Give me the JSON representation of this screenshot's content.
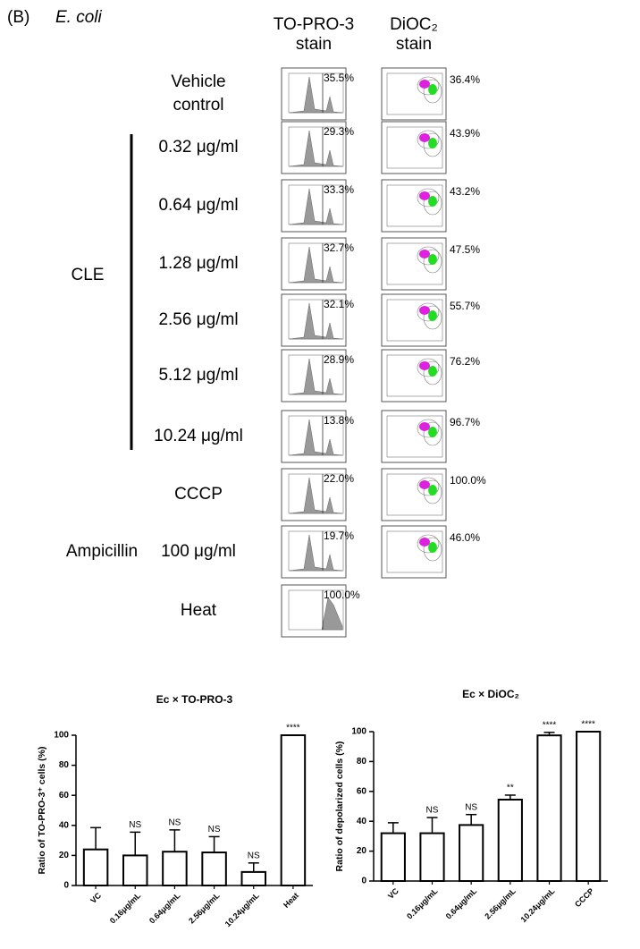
{
  "panel": {
    "label": "(B)",
    "organism": "E. coli"
  },
  "columns": [
    {
      "lines": [
        "TO-PRO-3",
        "stain"
      ]
    },
    {
      "lines": [
        "DiOC₂",
        "stain"
      ]
    }
  ],
  "groups": [
    {
      "label": "CLE"
    },
    {
      "label": "Ampicillin"
    }
  ],
  "rows": [
    {
      "lines": [
        "Vehicle",
        "control"
      ],
      "to_pro_3": "35.5%",
      "dioc2": "36.4%"
    },
    {
      "lines": [
        "0.32 μg/ml"
      ],
      "to_pro_3": "29.3%",
      "dioc2": "43.9%"
    },
    {
      "lines": [
        "0.64 μg/ml"
      ],
      "to_pro_3": "33.3%",
      "dioc2": "43.2%"
    },
    {
      "lines": [
        "1.28 μg/ml"
      ],
      "to_pro_3": "32.7%",
      "dioc2": "47.5%"
    },
    {
      "lines": [
        "2.56 μg/ml"
      ],
      "to_pro_3": "32.1%",
      "dioc2": "55.7%"
    },
    {
      "lines": [
        "5.12 μg/ml"
      ],
      "to_pro_3": "28.9%",
      "dioc2": "76.2%"
    },
    {
      "lines": [
        "10.24 μg/ml"
      ],
      "to_pro_3": "13.8%",
      "dioc2": "96.7%"
    },
    {
      "lines": [
        "CCCP"
      ],
      "to_pro_3": "22.0%",
      "dioc2": "100.0%"
    },
    {
      "lines": [
        "100 μg/ml"
      ],
      "to_pro_3": "19.7%",
      "dioc2": "46.0%"
    },
    {
      "lines": [
        "Heat"
      ],
      "to_pro_3": "100.0%",
      "dioc2": null
    }
  ],
  "chart_data": [
    {
      "type": "bar",
      "title": "Ec × TO-PRO-3",
      "y_label": "Ratio of TO-PRO-3⁺ cells (%)",
      "categories": [
        "VC",
        "0.16μg/mL",
        "0.64μg/mL",
        "2.56μg/mL",
        "10.24μg/mL",
        "Heat"
      ],
      "values": [
        24,
        20,
        22.5,
        22,
        9,
        100
      ],
      "errors": [
        14.5,
        15.5,
        14.5,
        10.5,
        6,
        0
      ],
      "annotations": [
        null,
        "NS",
        "NS",
        "NS",
        "NS",
        "****"
      ],
      "ylim": [
        0,
        100
      ],
      "yticks": [
        0,
        20,
        40,
        60,
        80,
        100
      ],
      "color": "#ffffff"
    },
    {
      "type": "bar",
      "title": "Ec × DiOC₂",
      "y_label": "Ratio of depolarized cells (%)",
      "categories": [
        "VC",
        "0.16μg/mL",
        "0.64μg/mL",
        "2.56μg/mL",
        "10.24μg/mL",
        "CCCP"
      ],
      "values": [
        32,
        32,
        37.5,
        54.5,
        97.5,
        100
      ],
      "errors": [
        7,
        10.5,
        7,
        3,
        2,
        0
      ],
      "annotations": [
        null,
        "NS",
        "NS",
        "**",
        "****",
        "****"
      ],
      "ylim": [
        0,
        100
      ],
      "yticks": [
        0,
        20,
        40,
        60,
        80,
        100
      ],
      "color": "#ffffff"
    }
  ]
}
